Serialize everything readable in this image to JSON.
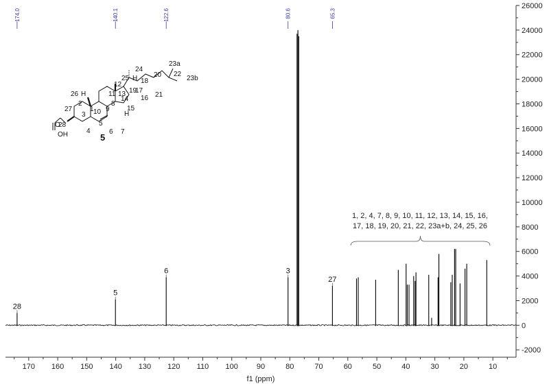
{
  "chart_data": {
    "type": "line",
    "title": "",
    "xlabel": "f1 (ppm)",
    "ylabel": "",
    "x_reversed": true,
    "xlim": [
      178,
      2
    ],
    "ylim": [
      -2600,
      26000
    ],
    "x_ticks": [
      170,
      160,
      150,
      140,
      130,
      120,
      110,
      100,
      90,
      80,
      70,
      60,
      50,
      40,
      30,
      20,
      10
    ],
    "y_ticks": [
      -2000,
      0,
      2000,
      4000,
      6000,
      8000,
      10000,
      12000,
      14000,
      16000,
      18000,
      20000,
      22000,
      24000,
      26000
    ],
    "y_axis_side": "right",
    "spectrum_color": "#000000",
    "top_label_color": "#3a3aa0",
    "peaks": [
      {
        "x": 174.0,
        "y": 1000
      },
      {
        "x": 140.1,
        "y": 2100
      },
      {
        "x": 122.6,
        "y": 3900
      },
      {
        "x": 80.6,
        "y": 3900
      },
      {
        "x": 77.5,
        "y": 23700
      },
      {
        "x": 77.2,
        "y": 24000
      },
      {
        "x": 76.9,
        "y": 23500
      },
      {
        "x": 65.3,
        "y": 3200
      },
      {
        "x": 57.0,
        "y": 3800
      },
      {
        "x": 56.4,
        "y": 3900
      },
      {
        "x": 50.4,
        "y": 3700
      },
      {
        "x": 42.6,
        "y": 4500
      },
      {
        "x": 39.9,
        "y": 5000
      },
      {
        "x": 39.5,
        "y": 3300
      },
      {
        "x": 38.9,
        "y": 3300
      },
      {
        "x": 37.3,
        "y": 4000
      },
      {
        "x": 36.8,
        "y": 3600
      },
      {
        "x": 36.5,
        "y": 4300
      },
      {
        "x": 32.1,
        "y": 4100
      },
      {
        "x": 31.1,
        "y": 600
      },
      {
        "x": 28.9,
        "y": 3900
      },
      {
        "x": 28.6,
        "y": 5800
      },
      {
        "x": 24.5,
        "y": 3500
      },
      {
        "x": 24.0,
        "y": 4100
      },
      {
        "x": 23.2,
        "y": 6200
      },
      {
        "x": 22.8,
        "y": 6200
      },
      {
        "x": 21.3,
        "y": 3400
      },
      {
        "x": 19.6,
        "y": 4600
      },
      {
        "x": 19.0,
        "y": 5000
      },
      {
        "x": 12.1,
        "y": 5300
      }
    ],
    "top_labels": [
      "174.0",
      "140.1",
      "122.6",
      "80.6",
      "65.3"
    ],
    "top_label_positions": [
      174.0,
      140.1,
      122.6,
      80.6,
      65.3
    ],
    "peak_labels": [
      {
        "text": "28",
        "x": 174.0,
        "y": 1000
      },
      {
        "text": "5",
        "x": 140.1,
        "y": 2100
      },
      {
        "text": "6",
        "x": 122.6,
        "y": 3900
      },
      {
        "text": "3",
        "x": 80.6,
        "y": 3900
      },
      {
        "text": "27",
        "x": 65.3,
        "y": 3200
      }
    ],
    "group_annotation": {
      "line1": "1, 2, 4, 7, 8, 9, 10, 11, 12, 13, 14, 15, 16,",
      "line2": "17, 18, 19, 20, 21, 22, 23a+b, 24, 25, 26",
      "x_start": 59,
      "x_end": 11
    }
  },
  "molecule": {
    "compound_number": "5",
    "atom_labels": [
      "23a",
      "24",
      "22",
      "25",
      "18",
      "20",
      "23b",
      "12",
      "H",
      "17",
      "19",
      "21",
      "26",
      "H",
      "11",
      "13",
      "16",
      "2",
      "1",
      "9",
      "14",
      "27",
      "10",
      "8",
      "15",
      "3",
      "H",
      "O",
      "4",
      "5",
      "6",
      "7",
      "28",
      "OH"
    ]
  }
}
